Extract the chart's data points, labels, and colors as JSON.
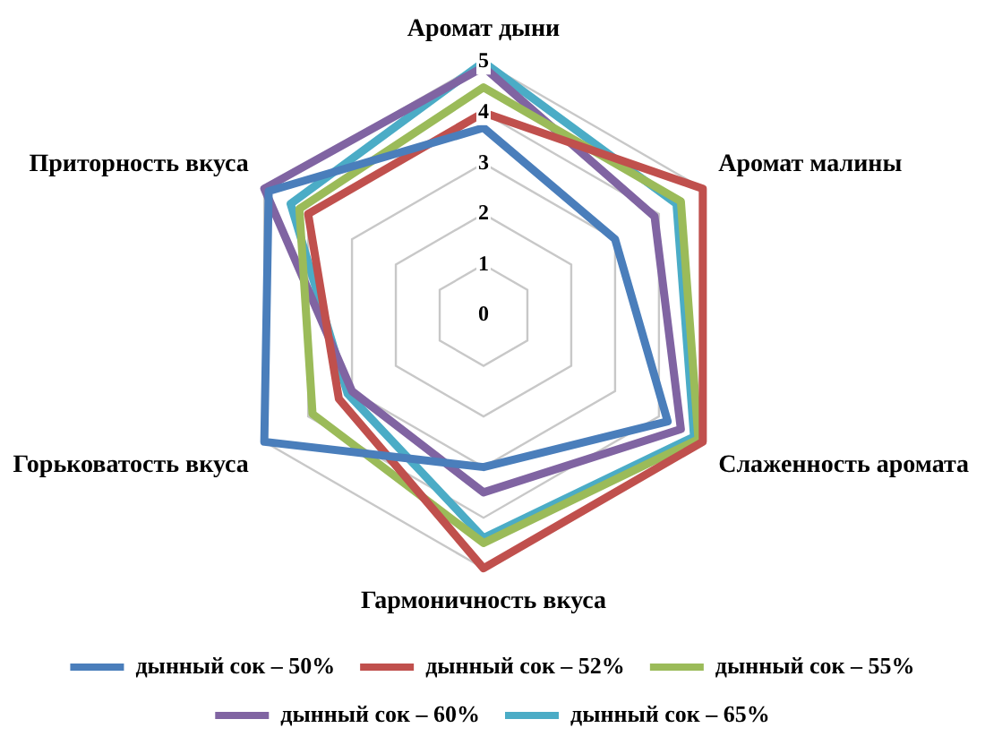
{
  "chart_data": {
    "type": "radar",
    "categories": [
      "Аромат дыни",
      "Аромат малины",
      "Слаженность аромата",
      "Гармоничность вкуса",
      "Горьковатость вкуса",
      "Приторность вкуса"
    ],
    "series": [
      {
        "name": "дынный сок – 50%",
        "color": "#4a7ebb",
        "values": [
          3.7,
          3.0,
          4.2,
          3.0,
          5.0,
          4.9
        ]
      },
      {
        "name": "дынный сок – 52%",
        "color": "#c0504d",
        "values": [
          4.0,
          5.0,
          5.0,
          5.0,
          3.3,
          4.0
        ]
      },
      {
        "name": "дынный сок – 55%",
        "color": "#9bbb59",
        "values": [
          4.5,
          4.5,
          4.9,
          4.5,
          3.9,
          4.2
        ]
      },
      {
        "name": "дынный сок – 60%",
        "color": "#8064a2",
        "values": [
          4.9,
          3.9,
          4.5,
          3.5,
          3.0,
          5.0
        ]
      },
      {
        "name": "дынный сок – 65%",
        "color": "#4bacc6",
        "values": [
          5.0,
          4.4,
          4.8,
          4.4,
          3.1,
          4.4
        ]
      }
    ],
    "ylim": [
      0,
      5
    ],
    "yticks": [
      0,
      1,
      2,
      3,
      4,
      5
    ],
    "grid": true,
    "legend": "bottom",
    "marker": "none"
  }
}
